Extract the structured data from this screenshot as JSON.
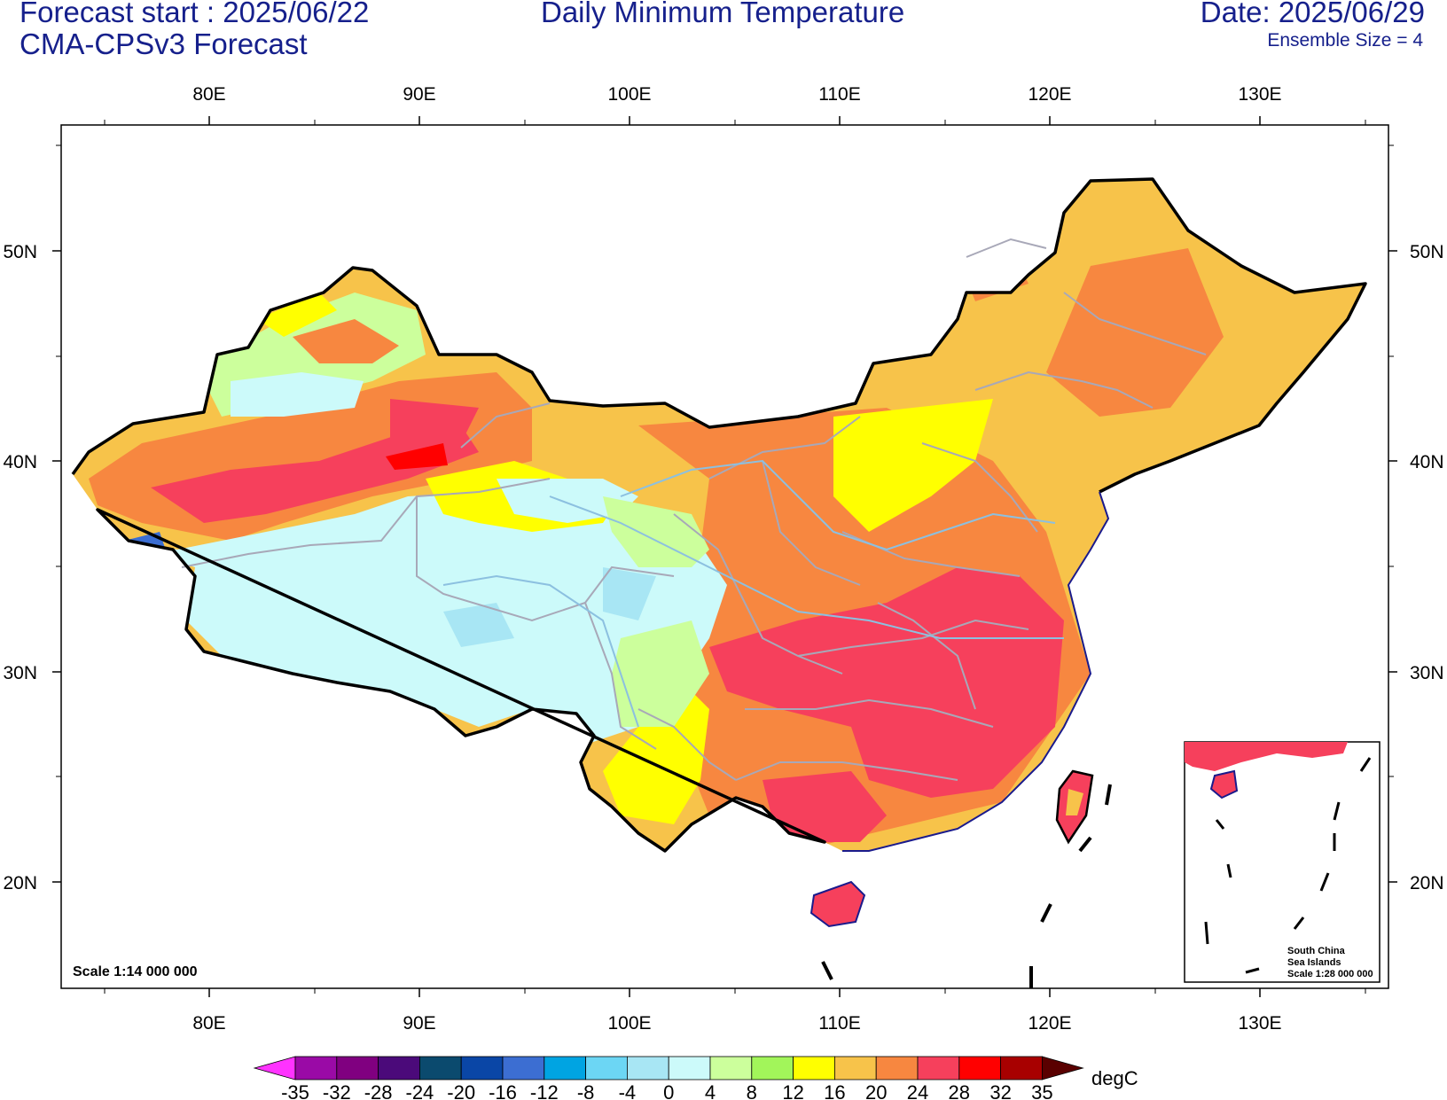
{
  "header": {
    "forecast_start": "Forecast start : 2025/06/22",
    "model": "CMA-CPSv3 Forecast",
    "title": "Daily Minimum Temperature",
    "date": "Date: 2025/06/29",
    "ensemble": "Ensemble Size = 4"
  },
  "axes": {
    "lon_labels": [
      "80E",
      "90E",
      "100E",
      "110E",
      "120E",
      "130E"
    ],
    "lat_labels": [
      "50N",
      "40N",
      "30N",
      "20N"
    ]
  },
  "scale_text": "Scale 1:14 000 000",
  "inset": {
    "line1": "South China",
    "line2": "Sea Islands",
    "line3": "Scale 1:28 000 000"
  },
  "colorbar": {
    "unit": "degC",
    "levels": [
      "-35",
      "-32",
      "-28",
      "-24",
      "-20",
      "-16",
      "-12",
      "-8",
      "-4",
      "0",
      "4",
      "8",
      "12",
      "16",
      "20",
      "24",
      "28",
      "32",
      "35"
    ],
    "colors": [
      "#ff33ff",
      "#9a0aa6",
      "#800080",
      "#4b0a7a",
      "#0b4a6e",
      "#0a46a6",
      "#3c6ed2",
      "#00a4e2",
      "#6cd6f4",
      "#a8e6f4",
      "#ccfafa",
      "#ccff9c",
      "#a2f55a",
      "#ffff00",
      "#f7c34a",
      "#f78740",
      "#f6405c",
      "#ff0000",
      "#a80000",
      "#5a0000"
    ]
  },
  "colors": {
    "title": "#16208c",
    "border": "#000000",
    "province": "#a8a8b8",
    "river": "#8cc0e0"
  }
}
